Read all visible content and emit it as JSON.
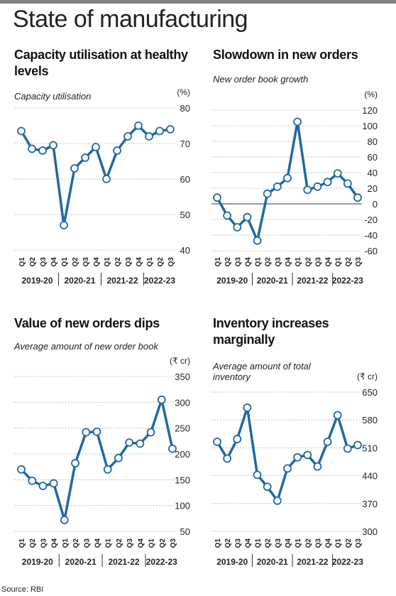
{
  "title": "State of manufacturing",
  "source": "Source: RBI",
  "chart_data": [
    {
      "type": "line",
      "title": "Capacity utilisation at healthy levels",
      "subtitle": "Capacity utilisation",
      "y_unit": "(%)",
      "categories": [
        "Q1",
        "Q2",
        "Q3",
        "Q4",
        "Q1",
        "Q2",
        "Q3",
        "Q4",
        "Q1",
        "Q2",
        "Q3",
        "Q4",
        "Q1",
        "Q2",
        "Q3"
      ],
      "x_groups": [
        "2019-20",
        "2020-21",
        "2021-22",
        "2022-23"
      ],
      "values": [
        73.5,
        68.5,
        68,
        69.5,
        47,
        63,
        66,
        69,
        60,
        68,
        72,
        75,
        72,
        73.5,
        74
      ],
      "color": "#1f68a3",
      "ylim": [
        40,
        80
      ],
      "yticks": [
        40,
        50,
        60,
        70,
        80
      ],
      "grid": true
    },
    {
      "type": "line",
      "title": "Slowdown in new orders",
      "subtitle": "New order book growth",
      "y_unit": "(%)",
      "categories": [
        "Q1",
        "Q2",
        "Q3",
        "Q4",
        "Q1",
        "Q2",
        "Q3",
        "Q4",
        "Q1",
        "Q2",
        "Q3",
        "Q4",
        "Q1",
        "Q2",
        "Q3"
      ],
      "x_groups": [
        "2019-20",
        "2020-21",
        "2021-22",
        "2022-23"
      ],
      "values": [
        8,
        -15,
        -30,
        -17,
        -47,
        13,
        22,
        33,
        105,
        18,
        22,
        28,
        39,
        26,
        8
      ],
      "color": "#1f68a3",
      "ylim": [
        -60,
        120
      ],
      "yticks": [
        -60,
        -40,
        -20,
        0,
        20,
        40,
        60,
        80,
        100,
        120
      ],
      "grid": true
    },
    {
      "type": "line",
      "title": "Value of new orders dips",
      "subtitle": "Average amount of new order book",
      "y_unit": "(₹ cr)",
      "categories": [
        "Q1",
        "Q2",
        "Q3",
        "Q4",
        "Q1",
        "Q2",
        "Q3",
        "Q4",
        "Q1",
        "Q2",
        "Q3",
        "Q4",
        "Q1",
        "Q2",
        "Q3"
      ],
      "x_groups": [
        "2019-20",
        "2020-21",
        "2021-22",
        "2022-23"
      ],
      "values": [
        170,
        148,
        138,
        143,
        72,
        182,
        242,
        243,
        170,
        192,
        222,
        220,
        242,
        305,
        210
      ],
      "color": "#1f68a3",
      "ylim": [
        50,
        350
      ],
      "yticks": [
        50,
        100,
        150,
        200,
        250,
        300,
        350
      ],
      "grid": true
    },
    {
      "type": "line",
      "title": "Inventory increases marginally",
      "subtitle": "Average amount of total inventory",
      "y_unit": "(₹ cr)",
      "categories": [
        "Q1",
        "Q2",
        "Q3",
        "Q4",
        "Q1",
        "Q2",
        "Q3",
        "Q4",
        "Q1",
        "Q2",
        "Q3",
        "Q4",
        "Q1",
        "Q2",
        "Q3"
      ],
      "x_groups": [
        "2019-20",
        "2020-21",
        "2021-22",
        "2022-23"
      ],
      "values": [
        525,
        483,
        532,
        611,
        442,
        412,
        377,
        458,
        486,
        492,
        463,
        525,
        592,
        508,
        517
      ],
      "color": "#1f68a3",
      "ylim": [
        300,
        650
      ],
      "yticks": [
        300,
        370,
        440,
        510,
        580,
        650
      ],
      "grid": true
    }
  ]
}
